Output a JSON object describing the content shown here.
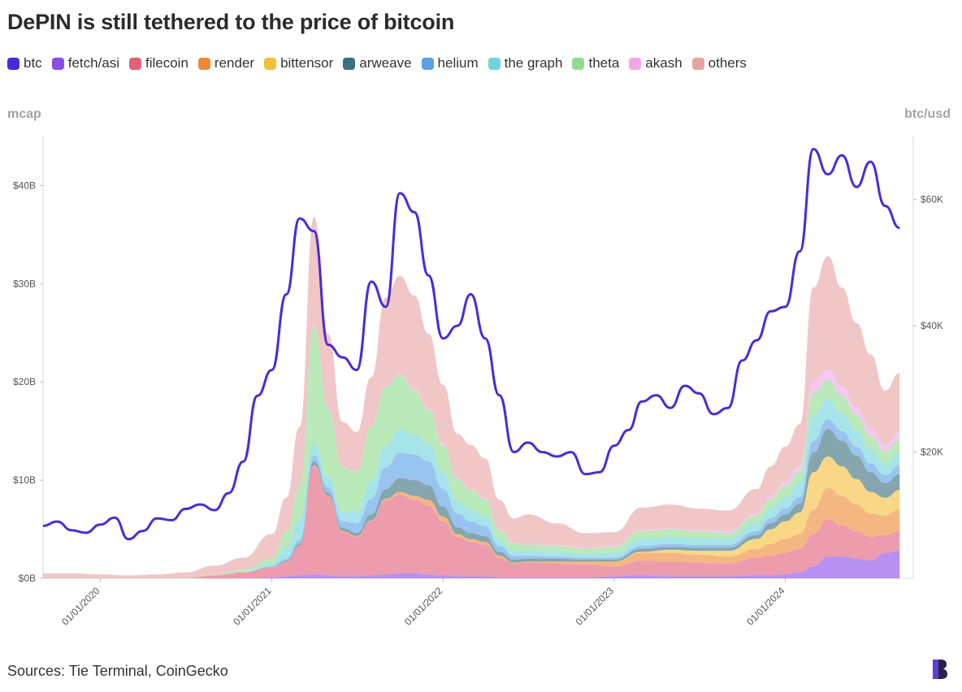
{
  "title": "DePIN is still tethered to the price of bitcoin",
  "legend": [
    {
      "label": "btc",
      "color": "#4a2bd9"
    },
    {
      "label": "fetch/asi",
      "color": "#8a4de8"
    },
    {
      "label": "filecoin",
      "color": "#e0607a"
    },
    {
      "label": "render",
      "color": "#ef8a35"
    },
    {
      "label": "bittensor",
      "color": "#f3c03b"
    },
    {
      "label": "arweave",
      "color": "#3a6f7e"
    },
    {
      "label": "helium",
      "color": "#5b9fe6"
    },
    {
      "label": "the graph",
      "color": "#6fd3dc"
    },
    {
      "label": "theta",
      "color": "#8fdc8f"
    },
    {
      "label": "akash",
      "color": "#f1a8e6"
    },
    {
      "label": "others",
      "color": "#e6a3a3"
    }
  ],
  "axis_left_title": "mcap",
  "axis_right_title": "btc/usd",
  "source": "Sources: Tie Terminal, CoinGecko",
  "chart_data": {
    "type": "area",
    "title": "DePIN is still tethered to the price of bitcoin",
    "ylabel": "mcap",
    "y2label": "btc/usd",
    "ylim": [
      0,
      45
    ],
    "y_unit": "$B",
    "y2lim": [
      0,
      70000
    ],
    "y_ticks": [
      "$0B",
      "$10B",
      "$20B",
      "$30B",
      "$40B"
    ],
    "y2_ticks": [
      "$20K",
      "$40K",
      "$60K"
    ],
    "x_ticks": [
      "01/01/2020",
      "01/01/2021",
      "01/01/2022",
      "01/01/2023",
      "01/01/2024"
    ],
    "x_range": [
      "2019-09-01",
      "2024-09-30"
    ],
    "x": [
      "2019-09",
      "2019-11",
      "2020-01",
      "2020-03",
      "2020-05",
      "2020-07",
      "2020-09",
      "2020-11",
      "2021-01",
      "2021-02",
      "2021-03",
      "2021-04",
      "2021-05",
      "2021-06",
      "2021-07",
      "2021-08",
      "2021-09",
      "2021-10",
      "2021-11",
      "2021-12",
      "2022-01",
      "2022-02",
      "2022-03",
      "2022-04",
      "2022-05",
      "2022-06",
      "2022-07",
      "2022-09",
      "2022-11",
      "2023-01",
      "2023-03",
      "2023-05",
      "2023-07",
      "2023-09",
      "2023-11",
      "2023-12",
      "2024-01",
      "2024-02",
      "2024-03",
      "2024-04",
      "2024-05",
      "2024-06",
      "2024-07",
      "2024-08",
      "2024-09"
    ],
    "stacked_series": [
      {
        "name": "fetch/asi",
        "values": [
          0,
          0,
          0,
          0,
          0,
          0,
          0,
          0,
          0.1,
          0.2,
          0.3,
          0.4,
          0.3,
          0.2,
          0.2,
          0.3,
          0.4,
          0.5,
          0.5,
          0.4,
          0.3,
          0.2,
          0.2,
          0.2,
          0.1,
          0.1,
          0.1,
          0.1,
          0.1,
          0.2,
          0.3,
          0.2,
          0.2,
          0.2,
          0.3,
          0.3,
          0.4,
          0.6,
          1.2,
          2.2,
          2.2,
          2.0,
          1.8,
          2.6,
          2.8
        ]
      },
      {
        "name": "filecoin",
        "values": [
          0,
          0,
          0,
          0,
          0,
          0,
          0.3,
          0.6,
          1.0,
          1.5,
          3.0,
          11.0,
          8.0,
          4.5,
          4.0,
          5.5,
          7.5,
          8.0,
          7.5,
          7.0,
          5.5,
          4.0,
          3.5,
          3.2,
          2.0,
          1.4,
          1.5,
          1.4,
          1.3,
          1.0,
          1.5,
          1.5,
          1.4,
          1.3,
          1.8,
          2.0,
          2.2,
          2.4,
          3.3,
          3.8,
          3.2,
          2.8,
          2.4,
          1.8,
          2.0
        ]
      },
      {
        "name": "render",
        "values": [
          0,
          0,
          0,
          0,
          0,
          0,
          0,
          0,
          0,
          0,
          0,
          0.1,
          0.1,
          0.1,
          0.1,
          0.1,
          0.2,
          0.3,
          0.4,
          0.6,
          0.5,
          0.3,
          0.3,
          0.3,
          0.2,
          0.1,
          0.1,
          0.2,
          0.3,
          0.5,
          0.8,
          0.9,
          0.8,
          0.7,
          0.9,
          1.2,
          1.4,
          1.5,
          2.5,
          3.2,
          3.0,
          2.7,
          2.4,
          2.0,
          2.2
        ]
      },
      {
        "name": "bittensor",
        "values": [
          0,
          0,
          0,
          0,
          0,
          0,
          0,
          0,
          0,
          0,
          0,
          0,
          0,
          0,
          0,
          0,
          0,
          0,
          0,
          0,
          0,
          0,
          0,
          0,
          0,
          0,
          0,
          0,
          0,
          0,
          0.1,
          0.3,
          0.4,
          0.6,
          1.0,
          1.5,
          1.8,
          2.2,
          3.8,
          3.2,
          3.0,
          2.6,
          2.2,
          1.8,
          2.0
        ]
      },
      {
        "name": "arweave",
        "values": [
          0,
          0,
          0,
          0,
          0,
          0,
          0,
          0,
          0,
          0.1,
          0.2,
          0.4,
          0.3,
          0.3,
          0.3,
          0.6,
          1.0,
          1.4,
          1.6,
          1.5,
          1.0,
          0.7,
          0.6,
          0.6,
          0.4,
          0.3,
          0.3,
          0.3,
          0.2,
          0.2,
          0.3,
          0.3,
          0.3,
          0.3,
          0.4,
          0.6,
          0.7,
          0.9,
          2.0,
          2.8,
          2.6,
          2.4,
          2.0,
          1.5,
          1.6
        ]
      },
      {
        "name": "helium",
        "values": [
          0,
          0,
          0,
          0,
          0,
          0,
          0,
          0,
          0.1,
          0.2,
          0.4,
          0.6,
          0.6,
          0.7,
          1.0,
          1.6,
          2.2,
          2.6,
          2.6,
          2.4,
          1.8,
          1.4,
          1.2,
          1.0,
          0.6,
          0.4,
          0.3,
          0.2,
          0.2,
          0.2,
          0.3,
          0.3,
          0.3,
          0.3,
          0.4,
          0.5,
          0.6,
          0.7,
          1.2,
          1.0,
          1.0,
          0.9,
          0.9,
          0.8,
          0.9
        ]
      },
      {
        "name": "the graph",
        "values": [
          0,
          0,
          0,
          0,
          0,
          0,
          0,
          0,
          0.3,
          1.2,
          2.0,
          1.2,
          1.0,
          1.0,
          1.2,
          1.8,
          2.2,
          2.4,
          2.0,
          1.8,
          1.6,
          1.3,
          1.2,
          1.0,
          0.6,
          0.5,
          0.5,
          0.5,
          0.4,
          0.5,
          0.7,
          0.7,
          0.7,
          0.6,
          0.8,
          1.0,
          1.2,
          1.4,
          2.5,
          2.0,
          1.8,
          1.6,
          1.4,
          1.2,
          1.3
        ]
      },
      {
        "name": "theta",
        "values": [
          0,
          0,
          0,
          0,
          0,
          0,
          0.1,
          0.3,
          0.5,
          1.5,
          3.5,
          12.0,
          7.0,
          4.5,
          4.0,
          5.5,
          6.0,
          5.5,
          4.5,
          3.5,
          2.8,
          2.2,
          2.0,
          1.8,
          1.0,
          0.7,
          0.6,
          0.6,
          0.5,
          0.6,
          0.8,
          0.8,
          0.7,
          0.6,
          0.8,
          1.0,
          1.1,
          1.2,
          2.4,
          2.0,
          1.8,
          1.6,
          1.4,
          1.2,
          1.3
        ]
      },
      {
        "name": "akash",
        "values": [
          0,
          0,
          0,
          0,
          0,
          0,
          0,
          0,
          0,
          0,
          0,
          0.1,
          0.1,
          0.1,
          0.1,
          0.1,
          0.1,
          0.1,
          0.2,
          0.2,
          0.2,
          0.1,
          0.1,
          0.1,
          0.1,
          0.1,
          0.1,
          0.1,
          0.1,
          0.1,
          0.1,
          0.1,
          0.1,
          0.2,
          0.2,
          0.3,
          0.4,
          0.6,
          1.2,
          1.1,
          1.0,
          0.9,
          0.8,
          0.7,
          0.8
        ]
      },
      {
        "name": "others",
        "values": [
          0.5,
          0.5,
          0.4,
          0.3,
          0.4,
          0.6,
          0.9,
          1.2,
          2.5,
          3.5,
          6.0,
          11.0,
          7.5,
          4.5,
          4.0,
          5.0,
          9.0,
          10.0,
          9.5,
          7.5,
          6.0,
          4.5,
          4.5,
          4.0,
          3.0,
          2.5,
          3.0,
          2.2,
          1.5,
          1.4,
          2.3,
          2.4,
          2.2,
          2.1,
          2.5,
          3.0,
          3.6,
          4.2,
          9.5,
          11.5,
          10.0,
          8.5,
          7.5,
          5.5,
          6.0
        ]
      }
    ],
    "line_series": {
      "name": "btc",
      "axis": "right",
      "x": [
        "2019-09",
        "2019-10",
        "2019-11",
        "2019-12",
        "2020-01",
        "2020-02",
        "2020-03",
        "2020-04",
        "2020-05",
        "2020-06",
        "2020-07",
        "2020-08",
        "2020-09",
        "2020-10",
        "2020-11",
        "2020-12",
        "2021-01",
        "2021-02",
        "2021-03",
        "2021-04",
        "2021-05",
        "2021-06",
        "2021-07",
        "2021-08",
        "2021-09",
        "2021-10",
        "2021-11",
        "2021-12",
        "2022-01",
        "2022-02",
        "2022-03",
        "2022-04",
        "2022-05",
        "2022-06",
        "2022-07",
        "2022-08",
        "2022-09",
        "2022-10",
        "2022-11",
        "2022-12",
        "2023-01",
        "2023-02",
        "2023-03",
        "2023-04",
        "2023-05",
        "2023-06",
        "2023-07",
        "2023-08",
        "2023-09",
        "2023-10",
        "2023-11",
        "2023-12",
        "2024-01",
        "2024-02",
        "2024-03",
        "2024-04",
        "2024-05",
        "2024-06",
        "2024-07",
        "2024-08",
        "2024-09"
      ],
      "values": [
        8300,
        9000,
        7600,
        7200,
        8500,
        9600,
        6200,
        7500,
        9500,
        9200,
        11000,
        11700,
        10800,
        13500,
        18500,
        28900,
        33000,
        45000,
        57000,
        55000,
        37000,
        35000,
        33000,
        47000,
        43000,
        61000,
        58000,
        48000,
        38000,
        40000,
        45000,
        38000,
        29000,
        20000,
        21500,
        20000,
        19300,
        20000,
        16500,
        16800,
        21000,
        23500,
        28000,
        29000,
        27000,
        30500,
        29300,
        26000,
        27000,
        34500,
        37700,
        42300,
        43000,
        51800,
        68000,
        64000,
        67000,
        62000,
        66000,
        59000,
        55500
      ]
    }
  }
}
